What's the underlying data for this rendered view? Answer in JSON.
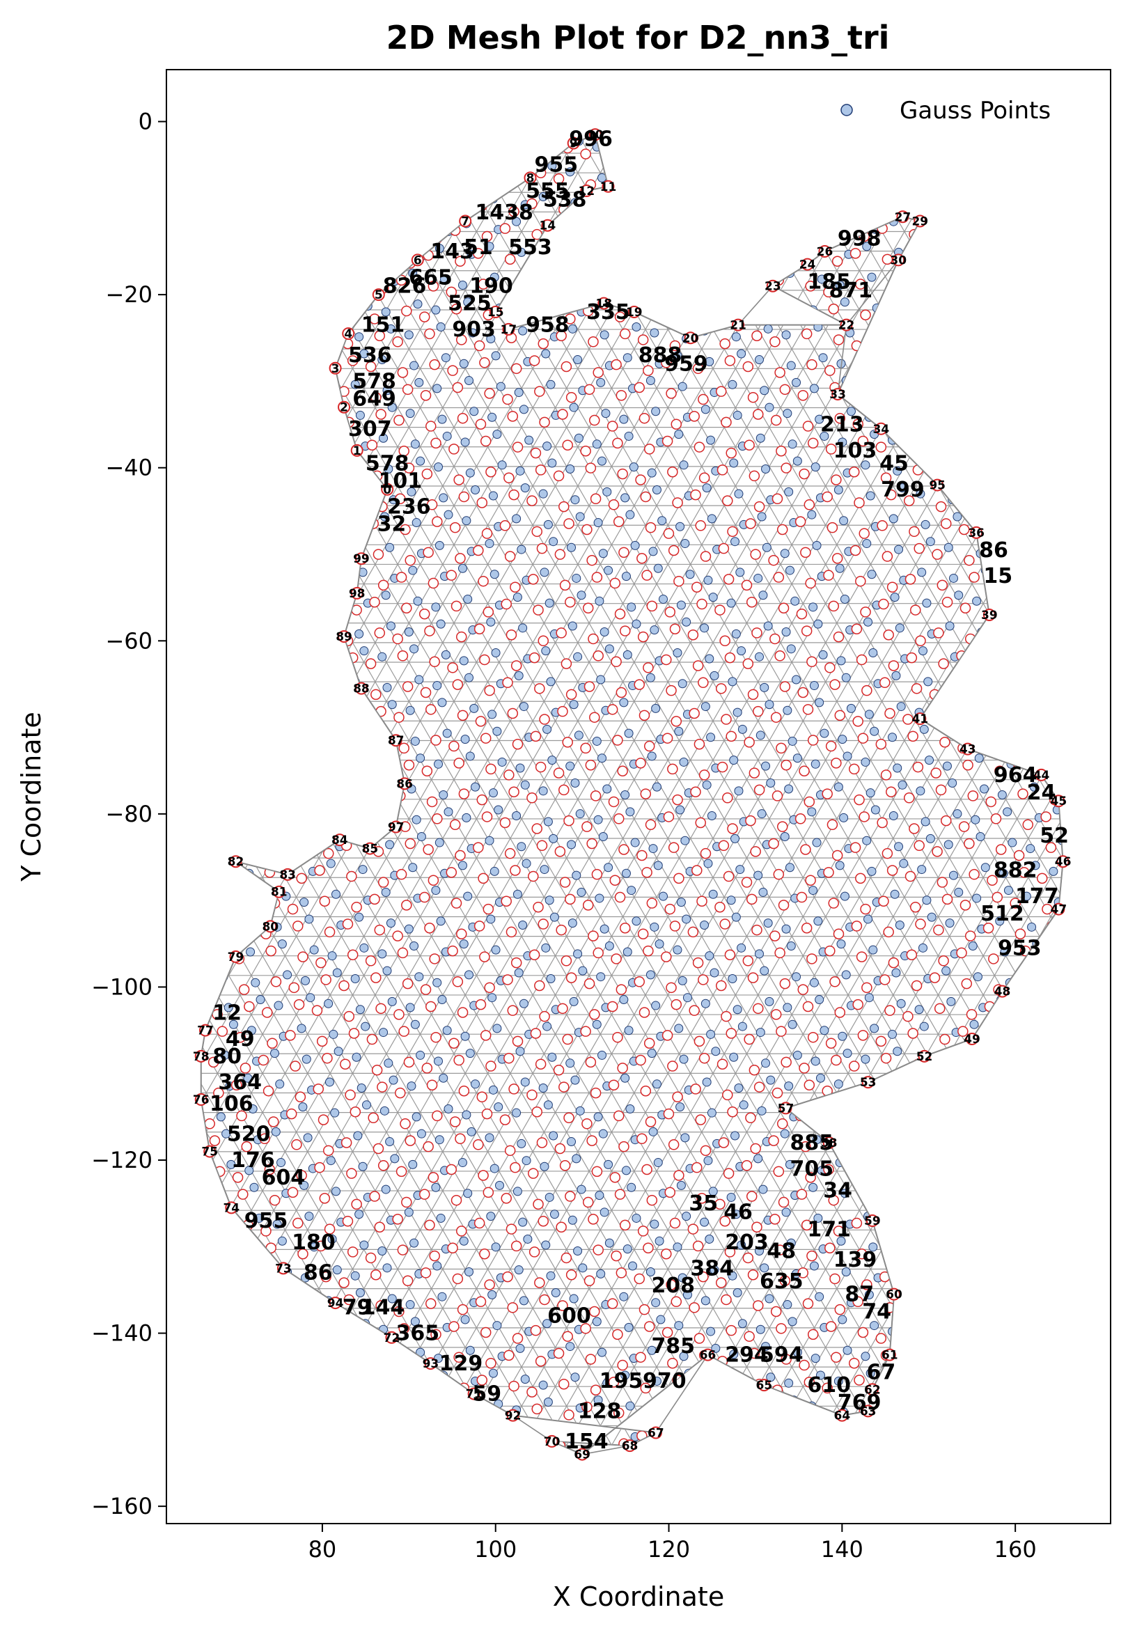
{
  "chart_data": {
    "type": "scatter",
    "title": "2D Mesh Plot for D2_nn3_tri",
    "xlabel": "X Coordinate",
    "ylabel": "Y Coordinate",
    "xlim": [
      62,
      171
    ],
    "ylim": [
      -162,
      6
    ],
    "xticks": [
      80,
      100,
      120,
      140,
      160
    ],
    "yticks": [
      0,
      -20,
      -40,
      -60,
      -80,
      -100,
      -120,
      -140,
      -160
    ],
    "grid": false,
    "legend": {
      "position": "top-right",
      "entries": [
        "Gauss Points"
      ]
    },
    "colors": {
      "gauss_point_fill": "#aec7e8",
      "gauss_point_edge": "#1f3b73",
      "node_ring": "#d62728",
      "mesh_edge": "#999999"
    },
    "boundary_nodes": [
      {
        "id": "69",
        "x": 110,
        "y": -154
      },
      {
        "id": "70",
        "x": 106.5,
        "y": -152.5
      },
      {
        "id": "68",
        "x": 115.5,
        "y": -153
      },
      {
        "id": "67",
        "x": 118.5,
        "y": -151.5
      },
      {
        "id": "92",
        "x": 102,
        "y": -149.5
      },
      {
        "id": "71",
        "x": 97.5,
        "y": -147
      },
      {
        "id": "93",
        "x": 92.5,
        "y": -143.5
      },
      {
        "id": "72",
        "x": 88,
        "y": -140.5
      },
      {
        "id": "94",
        "x": 81.5,
        "y": -136.5
      },
      {
        "id": "73",
        "x": 75.5,
        "y": -132.5
      },
      {
        "id": "74",
        "x": 69.5,
        "y": -125.5
      },
      {
        "id": "75",
        "x": 67,
        "y": -119
      },
      {
        "id": "76",
        "x": 66,
        "y": -113
      },
      {
        "id": "78",
        "x": 66,
        "y": -108
      },
      {
        "id": "77",
        "x": 66.5,
        "y": -105
      },
      {
        "id": "79",
        "x": 70,
        "y": -96.5
      },
      {
        "id": "80",
        "x": 74,
        "y": -93
      },
      {
        "id": "81",
        "x": 75,
        "y": -89
      },
      {
        "id": "82",
        "x": 70,
        "y": -85.5
      },
      {
        "id": "83",
        "x": 76,
        "y": -87
      },
      {
        "id": "84",
        "x": 82,
        "y": -83
      },
      {
        "id": "85",
        "x": 85.5,
        "y": -84
      },
      {
        "id": "97",
        "x": 88.5,
        "y": -81.5
      },
      {
        "id": "86",
        "x": 89.5,
        "y": -76.5
      },
      {
        "id": "87",
        "x": 88.5,
        "y": -71.5
      },
      {
        "id": "88",
        "x": 84.5,
        "y": -65.5
      },
      {
        "id": "89",
        "x": 82.5,
        "y": -59.5
      },
      {
        "id": "98",
        "x": 84,
        "y": -54.5
      },
      {
        "id": "99",
        "x": 84.5,
        "y": -50.5
      },
      {
        "id": "0",
        "x": 87.5,
        "y": -42.5
      },
      {
        "id": "1",
        "x": 84,
        "y": -38
      },
      {
        "id": "2",
        "x": 82.5,
        "y": -33
      },
      {
        "id": "3",
        "x": 81.5,
        "y": -28.5
      },
      {
        "id": "4",
        "x": 83,
        "y": -24.5
      },
      {
        "id": "5",
        "x": 86.5,
        "y": -20
      },
      {
        "id": "6",
        "x": 91,
        "y": -16
      },
      {
        "id": "7",
        "x": 96.5,
        "y": -11.5
      },
      {
        "id": "8",
        "x": 104,
        "y": -6.5
      },
      {
        "id": "9",
        "x": 109,
        "y": -2.5
      },
      {
        "id": "10",
        "x": 111.5,
        "y": -1.5
      },
      {
        "id": "11",
        "x": 113,
        "y": -7.5
      },
      {
        "id": "12",
        "x": 110.5,
        "y": -8
      },
      {
        "id": "14",
        "x": 106,
        "y": -12
      },
      {
        "id": "15",
        "x": 100,
        "y": -22
      },
      {
        "id": "17",
        "x": 101.5,
        "y": -24
      },
      {
        "id": "18",
        "x": 112.5,
        "y": -21
      },
      {
        "id": "19",
        "x": 116,
        "y": -22
      },
      {
        "id": "20",
        "x": 122.5,
        "y": -25
      },
      {
        "id": "21",
        "x": 128,
        "y": -23.5
      },
      {
        "id": "22",
        "x": 140.5,
        "y": -23.5
      },
      {
        "id": "23",
        "x": 132,
        "y": -19
      },
      {
        "id": "24",
        "x": 136,
        "y": -16.5
      },
      {
        "id": "26",
        "x": 138,
        "y": -15
      },
      {
        "id": "27",
        "x": 147,
        "y": -11
      },
      {
        "id": "29",
        "x": 149,
        "y": -11.5
      },
      {
        "id": "30",
        "x": 146.5,
        "y": -16
      },
      {
        "id": "33",
        "x": 139.5,
        "y": -31.5
      },
      {
        "id": "34",
        "x": 144.5,
        "y": -35.5
      },
      {
        "id": "95",
        "x": 151,
        "y": -42
      },
      {
        "id": "36",
        "x": 155.5,
        "y": -47.5
      },
      {
        "id": "39",
        "x": 157,
        "y": -57
      },
      {
        "id": "41",
        "x": 149,
        "y": -69
      },
      {
        "id": "43",
        "x": 154.5,
        "y": -72.5
      },
      {
        "id": "44",
        "x": 163,
        "y": -75.5
      },
      {
        "id": "45",
        "x": 165,
        "y": -78.5
      },
      {
        "id": "46",
        "x": 165.5,
        "y": -85.5
      },
      {
        "id": "47",
        "x": 165,
        "y": -91
      },
      {
        "id": "48",
        "x": 158.5,
        "y": -100.5
      },
      {
        "id": "49",
        "x": 155,
        "y": -106
      },
      {
        "id": "52",
        "x": 149.5,
        "y": -108
      },
      {
        "id": "53",
        "x": 143,
        "y": -111
      },
      {
        "id": "57",
        "x": 133.5,
        "y": -114
      },
      {
        "id": "58",
        "x": 138.5,
        "y": -118
      },
      {
        "id": "59",
        "x": 143.5,
        "y": -127
      },
      {
        "id": "60",
        "x": 146,
        "y": -135.5
      },
      {
        "id": "61",
        "x": 145.5,
        "y": -142.5
      },
      {
        "id": "62",
        "x": 143.5,
        "y": -146.5
      },
      {
        "id": "63",
        "x": 143,
        "y": -149
      },
      {
        "id": "64",
        "x": 140,
        "y": -149.5
      },
      {
        "id": "65",
        "x": 131,
        "y": -146
      },
      {
        "id": "66",
        "x": 124.5,
        "y": -142.5
      }
    ],
    "node_labels": [
      {
        "id": "101",
        "x": 89,
        "y": -41.5
      },
      {
        "id": "236",
        "x": 90,
        "y": -44.5
      },
      {
        "id": "32",
        "x": 88,
        "y": -46.5
      },
      {
        "id": "578",
        "x": 87.5,
        "y": -39.5
      },
      {
        "id": "307",
        "x": 85.5,
        "y": -35.5
      },
      {
        "id": "649",
        "x": 86,
        "y": -32
      },
      {
        "id": "578",
        "x": 86,
        "y": -30
      },
      {
        "id": "536",
        "x": 85.5,
        "y": -27
      },
      {
        "id": "151",
        "x": 87,
        "y": -23.5
      },
      {
        "id": "826",
        "x": 89.5,
        "y": -19
      },
      {
        "id": "665",
        "x": 92.5,
        "y": -18
      },
      {
        "id": "143",
        "x": 95,
        "y": -15
      },
      {
        "id": "51",
        "x": 98,
        "y": -14.5
      },
      {
        "id": "190",
        "x": 99.5,
        "y": -19
      },
      {
        "id": "525",
        "x": 97,
        "y": -21
      },
      {
        "id": "1438",
        "x": 101,
        "y": -10.5
      },
      {
        "id": "553",
        "x": 104,
        "y": -14.5
      },
      {
        "id": "955",
        "x": 107,
        "y": -5
      },
      {
        "id": "555",
        "x": 106,
        "y": -8
      },
      {
        "id": "538",
        "x": 108,
        "y": -9
      },
      {
        "id": "996",
        "x": 111,
        "y": -2
      },
      {
        "id": "903",
        "x": 97.5,
        "y": -24
      },
      {
        "id": "958",
        "x": 106,
        "y": -23.5
      },
      {
        "id": "335",
        "x": 113,
        "y": -22
      },
      {
        "id": "959",
        "x": 122,
        "y": -28
      },
      {
        "id": "888",
        "x": 119,
        "y": -27
      },
      {
        "id": "185",
        "x": 138.5,
        "y": -18.5
      },
      {
        "id": "998",
        "x": 142,
        "y": -13.5
      },
      {
        "id": "871",
        "x": 141,
        "y": -19.5
      },
      {
        "id": "213",
        "x": 140,
        "y": -35
      },
      {
        "id": "103",
        "x": 141.5,
        "y": -38
      },
      {
        "id": "45",
        "x": 146,
        "y": -39.5
      },
      {
        "id": "799",
        "x": 147,
        "y": -42.5
      },
      {
        "id": "86",
        "x": 157.5,
        "y": -49.5
      },
      {
        "id": "15",
        "x": 158,
        "y": -52.5
      },
      {
        "id": "964",
        "x": 160,
        "y": -75.5
      },
      {
        "id": "24",
        "x": 163,
        "y": -77.5
      },
      {
        "id": "52",
        "x": 164.5,
        "y": -82.5
      },
      {
        "id": "882",
        "x": 160,
        "y": -86.5
      },
      {
        "id": "177",
        "x": 162.5,
        "y": -89.5
      },
      {
        "id": "512",
        "x": 158.5,
        "y": -91.5
      },
      {
        "id": "953",
        "x": 160.5,
        "y": -95.5
      },
      {
        "id": "885",
        "x": 136.5,
        "y": -118
      },
      {
        "id": "705",
        "x": 136.5,
        "y": -121
      },
      {
        "id": "34",
        "x": 139.5,
        "y": -123.5
      },
      {
        "id": "171",
        "x": 138.5,
        "y": -128
      },
      {
        "id": "139",
        "x": 141.5,
        "y": -131.5
      },
      {
        "id": "87",
        "x": 142,
        "y": -135.5
      },
      {
        "id": "74",
        "x": 144,
        "y": -137.5
      },
      {
        "id": "67",
        "x": 144.5,
        "y": -144.5
      },
      {
        "id": "769",
        "x": 142,
        "y": -148
      },
      {
        "id": "610",
        "x": 138.5,
        "y": -146
      },
      {
        "id": "294",
        "x": 129,
        "y": -142.5
      },
      {
        "id": "594",
        "x": 133,
        "y": -142.5
      },
      {
        "id": "785",
        "x": 120.5,
        "y": -141.5
      },
      {
        "id": "970",
        "x": 119.5,
        "y": -145.5
      },
      {
        "id": "195",
        "x": 114.5,
        "y": -145.5
      },
      {
        "id": "128",
        "x": 112,
        "y": -149
      },
      {
        "id": "154",
        "x": 110.5,
        "y": -152.5
      },
      {
        "id": "129",
        "x": 96,
        "y": -143.5
      },
      {
        "id": "59",
        "x": 99,
        "y": -147
      },
      {
        "id": "365",
        "x": 91,
        "y": -140
      },
      {
        "id": "144",
        "x": 87,
        "y": -137
      },
      {
        "id": "79",
        "x": 84,
        "y": -137
      },
      {
        "id": "86",
        "x": 79.5,
        "y": -133
      },
      {
        "id": "180",
        "x": 79,
        "y": -129.5
      },
      {
        "id": "955",
        "x": 73.5,
        "y": -127
      },
      {
        "id": "604",
        "x": 75.5,
        "y": -122
      },
      {
        "id": "176",
        "x": 72,
        "y": -120
      },
      {
        "id": "520",
        "x": 71.5,
        "y": -117
      },
      {
        "id": "106",
        "x": 69.5,
        "y": -113.5
      },
      {
        "id": "364",
        "x": 70.5,
        "y": -111
      },
      {
        "id": "80",
        "x": 69,
        "y": -108
      },
      {
        "id": "49",
        "x": 70.5,
        "y": -106
      },
      {
        "id": "12",
        "x": 69,
        "y": -103
      },
      {
        "id": "600",
        "x": 108.5,
        "y": -138
      },
      {
        "id": "208",
        "x": 120.5,
        "y": -134.5
      },
      {
        "id": "384",
        "x": 125,
        "y": -132.5
      },
      {
        "id": "635",
        "x": 133,
        "y": -134
      },
      {
        "id": "48",
        "x": 133,
        "y": -130.5
      },
      {
        "id": "203",
        "x": 129,
        "y": -129.5
      },
      {
        "id": "46",
        "x": 128,
        "y": -126
      },
      {
        "id": "35",
        "x": 124,
        "y": -125
      }
    ],
    "mesh_edges": [
      [
        "69",
        "70"
      ],
      [
        "70",
        "92"
      ],
      [
        "92",
        "71"
      ],
      [
        "71",
        "93"
      ],
      [
        "93",
        "72"
      ],
      [
        "72",
        "94"
      ],
      [
        "94",
        "73"
      ],
      [
        "73",
        "74"
      ],
      [
        "74",
        "75"
      ],
      [
        "75",
        "76"
      ],
      [
        "76",
        "78"
      ],
      [
        "78",
        "77"
      ],
      [
        "77",
        "79"
      ],
      [
        "79",
        "80"
      ],
      [
        "80",
        "81"
      ],
      [
        "81",
        "82"
      ],
      [
        "82",
        "83"
      ],
      [
        "83",
        "84"
      ],
      [
        "84",
        "85"
      ],
      [
        "85",
        "97"
      ],
      [
        "97",
        "86"
      ],
      [
        "86",
        "87"
      ],
      [
        "87",
        "88"
      ],
      [
        "88",
        "89"
      ],
      [
        "89",
        "98"
      ],
      [
        "98",
        "99"
      ],
      [
        "99",
        "0"
      ],
      [
        "0",
        "1"
      ],
      [
        "1",
        "2"
      ],
      [
        "2",
        "3"
      ],
      [
        "3",
        "4"
      ],
      [
        "4",
        "5"
      ],
      [
        "5",
        "6"
      ],
      [
        "6",
        "7"
      ],
      [
        "7",
        "8"
      ],
      [
        "8",
        "9"
      ],
      [
        "9",
        "10"
      ],
      [
        "10",
        "11"
      ],
      [
        "11",
        "12"
      ],
      [
        "12",
        "14"
      ],
      [
        "14",
        "15"
      ],
      [
        "15",
        "17"
      ],
      [
        "17",
        "18"
      ],
      [
        "18",
        "19"
      ],
      [
        "19",
        "20"
      ],
      [
        "20",
        "21"
      ],
      [
        "21",
        "23"
      ],
      [
        "23",
        "24"
      ],
      [
        "24",
        "26"
      ],
      [
        "26",
        "27"
      ],
      [
        "27",
        "29"
      ],
      [
        "29",
        "30"
      ],
      [
        "30",
        "22"
      ],
      [
        "22",
        "33"
      ],
      [
        "33",
        "34"
      ],
      [
        "34",
        "95"
      ],
      [
        "95",
        "36"
      ],
      [
        "36",
        "39"
      ],
      [
        "39",
        "41"
      ],
      [
        "41",
        "43"
      ],
      [
        "43",
        "44"
      ],
      [
        "44",
        "45"
      ],
      [
        "45",
        "46"
      ],
      [
        "46",
        "47"
      ],
      [
        "47",
        "48"
      ],
      [
        "48",
        "49"
      ],
      [
        "49",
        "52"
      ],
      [
        "52",
        "53"
      ],
      [
        "53",
        "57"
      ],
      [
        "57",
        "58"
      ],
      [
        "58",
        "59"
      ],
      [
        "59",
        "60"
      ],
      [
        "60",
        "61"
      ],
      [
        "61",
        "62"
      ],
      [
        "62",
        "63"
      ],
      [
        "63",
        "64"
      ],
      [
        "64",
        "65"
      ],
      [
        "65",
        "66"
      ],
      [
        "66",
        "67"
      ],
      [
        "67",
        "68"
      ],
      [
        "68",
        "69"
      ]
    ]
  }
}
